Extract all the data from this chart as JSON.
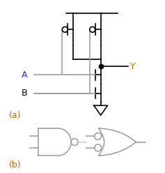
{
  "bg_color": "#ffffff",
  "line_color": "#999999",
  "black_color": "#000000",
  "orange_color": "#cc6600",
  "label_a": "A",
  "label_b": "B",
  "label_y": "Y",
  "label_a_color": "#3333cc",
  "label_b_color": "#000000",
  "label_y_color": "#cc6600",
  "label_a_text": "(a)",
  "label_b_text": "(b)"
}
